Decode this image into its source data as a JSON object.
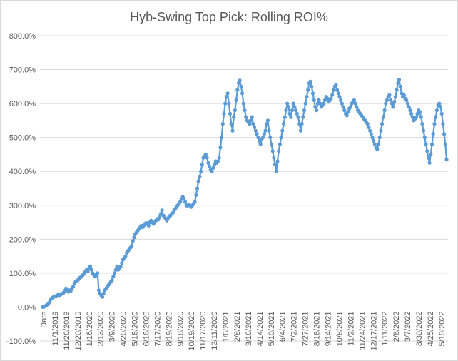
{
  "chart_data": {
    "type": "line",
    "title": "Hyb-Swing Top Pick: Rolling ROI%",
    "xlabel": "",
    "ylabel": "",
    "ylim": [
      -100,
      800
    ],
    "y_ticks": [
      "-100.0%",
      "0.0%",
      "100.0%",
      "200.0%",
      "300.0%",
      "400.0%",
      "500.0%",
      "600.0%",
      "700.0%",
      "800.0%"
    ],
    "x_tick_labels": [
      "Date",
      "11/1/2019",
      "11/26/2019",
      "12/20/2019",
      "1/16/2020",
      "2/13/2020",
      "3/9/2020",
      "4/20/2020",
      "5/18/2020",
      "6/16/2020",
      "7/17/2020",
      "8/19/2020",
      "9/18/2020",
      "10/19/2020",
      "11/17/2020",
      "12/11/2020",
      "1/6/2021",
      "2/8/2021",
      "3/16/2021",
      "4/14/2021",
      "5/10/2021",
      "6/4/2021",
      "7/2/2021",
      "7/27/2021",
      "8/18/2021",
      "9/14/2021",
      "10/8/2021",
      "11/2/2021",
      "11/24/2021",
      "12/17/2021",
      "1/11/2022",
      "2/8/2022",
      "3/7/2022",
      "3/30/2022",
      "4/25/2022",
      "5/19/2022"
    ],
    "grid": true,
    "legend": "none",
    "series_color": "#5b9bd5",
    "series": [
      {
        "values": [
          0,
          1,
          3,
          5,
          8,
          12,
          20,
          25,
          28,
          30,
          32,
          33,
          35,
          38,
          35,
          38,
          40,
          42,
          48,
          55,
          50,
          45,
          50,
          48,
          55,
          60,
          70,
          75,
          78,
          80,
          85,
          88,
          90,
          95,
          100,
          105,
          110,
          105,
          115,
          120,
          110,
          100,
          95,
          90,
          95,
          100,
          50,
          40,
          35,
          30,
          40,
          50,
          55,
          60,
          65,
          70,
          75,
          80,
          90,
          100,
          110,
          120,
          110,
          115,
          120,
          130,
          140,
          145,
          150,
          160,
          165,
          170,
          175,
          180,
          195,
          205,
          215,
          220,
          225,
          230,
          235,
          240,
          235,
          240,
          245,
          248,
          245,
          240,
          250,
          255,
          250,
          245,
          250,
          255,
          260,
          258,
          265,
          275,
          285,
          270,
          265,
          260,
          255,
          262,
          268,
          270,
          275,
          278,
          285,
          290,
          295,
          300,
          305,
          310,
          318,
          325,
          320,
          310,
          300,
          298,
          302,
          300,
          295,
          300,
          305,
          310,
          330,
          350,
          370,
          385,
          400,
          420,
          440,
          445,
          450,
          440,
          425,
          415,
          405,
          400,
          410,
          420,
          430,
          425,
          430,
          440,
          470,
          500,
          540,
          570,
          600,
          620,
          630,
          600,
          570,
          540,
          520,
          560,
          580,
          610,
          640,
          660,
          668,
          650,
          630,
          600,
          580,
          560,
          550,
          545,
          540,
          550,
          560,
          540,
          530,
          520,
          510,
          500,
          490,
          480,
          495,
          500,
          510,
          520,
          540,
          550,
          520,
          500,
          480,
          460,
          440,
          420,
          400,
          430,
          460,
          480,
          500,
          520,
          540,
          560,
          580,
          600,
          590,
          570,
          560,
          580,
          600,
          590,
          580,
          570,
          560,
          540,
          520,
          540,
          560,
          580,
          600,
          620,
          640,
          660,
          665,
          650,
          630,
          610,
          590,
          580,
          600,
          610,
          600,
          590,
          595,
          600,
          610,
          620,
          615,
          605,
          610,
          615,
          625,
          640,
          650,
          655,
          640,
          630,
          620,
          610,
          600,
          590,
          580,
          570,
          565,
          575,
          585,
          590,
          600,
          605,
          610,
          600,
          590,
          580,
          575,
          570,
          565,
          560,
          555,
          550,
          545,
          540,
          530,
          520,
          510,
          500,
          490,
          480,
          470,
          465,
          480,
          500,
          520,
          540,
          560,
          580,
          600,
          610,
          620,
          625,
          610,
          600,
          590,
          605,
          620,
          640,
          660,
          670,
          650,
          630,
          620,
          625,
          615,
          610,
          600,
          590,
          580,
          570,
          560,
          550,
          555,
          560,
          570,
          580,
          575,
          560,
          540,
          520,
          500,
          480,
          460,
          440,
          425,
          450,
          480,
          510,
          540,
          560,
          580,
          595,
          600,
          590,
          570,
          540,
          510,
          480,
          435
        ]
      }
    ]
  }
}
